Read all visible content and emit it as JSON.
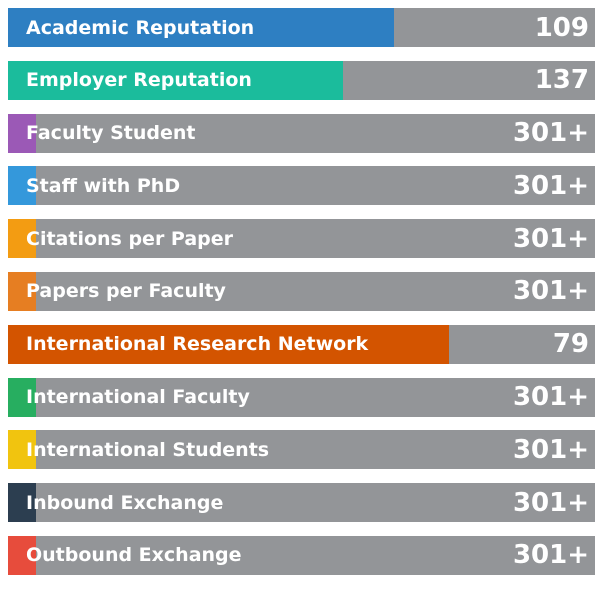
{
  "chart_data": {
    "type": "bar",
    "orientation": "horizontal",
    "bar_background": "#939598",
    "categories": [
      "Academic Reputation",
      "Employer Reputation",
      "Faculty Student",
      "Staff with PhD",
      "Citations per Paper",
      "Papers per Faculty",
      "International Research Network",
      "International Faculty",
      "International Students",
      "Inbound Exchange",
      "Outbound Exchange"
    ],
    "ranks": [
      "109",
      "137",
      "301+",
      "301+",
      "301+",
      "301+",
      "79",
      "301+",
      "301+",
      "301+",
      "301+"
    ],
    "fill_fractions": [
      0.657,
      0.57,
      0.047,
      0.047,
      0.047,
      0.047,
      0.752,
      0.047,
      0.047,
      0.047,
      0.047
    ],
    "colors": [
      "#2e7fc2",
      "#1bbc9c",
      "#9b59b6",
      "#3498db",
      "#f39c12",
      "#e67e22",
      "#d35400",
      "#27ae60",
      "#f1c40f",
      "#2c3e50",
      "#e74c3c"
    ]
  }
}
